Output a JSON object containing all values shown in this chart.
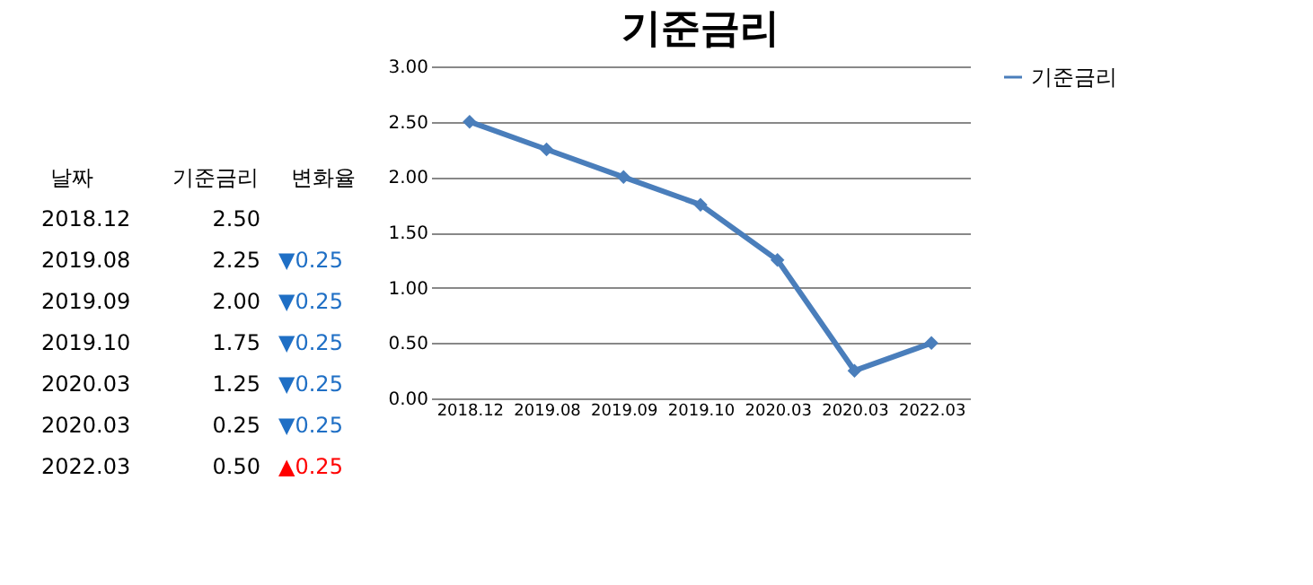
{
  "chart_data": {
    "type": "line",
    "title": "기준금리",
    "categories": [
      "2018.12",
      "2019.08",
      "2019.09",
      "2019.10",
      "2020.03",
      "2020.03",
      "2022.03"
    ],
    "series": [
      {
        "name": "기준금리",
        "color": "#4a7ebb",
        "values": [
          2.5,
          2.25,
          2.0,
          1.75,
          1.25,
          0.25,
          0.5
        ]
      }
    ],
    "value_labels": [
      "2.50",
      "2.25",
      "2.00",
      "1.75",
      "1.25",
      "0.25",
      "0.50"
    ],
    "annotations": [
      "날짜",
      "기준금리",
      "변화율",
      "▼0.25",
      "▼0.25",
      "▼0.25",
      "▼0.25",
      "▼0.25",
      "▲0.25"
    ],
    "ylim": [
      0,
      3
    ],
    "yticks": [
      {
        "value": 0,
        "label": "0.00"
      },
      {
        "value": 0.5,
        "label": "0.50"
      },
      {
        "value": 1,
        "label": "1.00"
      },
      {
        "value": 1.5,
        "label": "1.50"
      },
      {
        "value": 2,
        "label": "2.00"
      },
      {
        "value": 2.5,
        "label": "2.50"
      },
      {
        "value": 3,
        "label": "3.00"
      }
    ],
    "grid": "y",
    "legend": "right",
    "marker": "diamond",
    "line_style": "solid"
  }
}
